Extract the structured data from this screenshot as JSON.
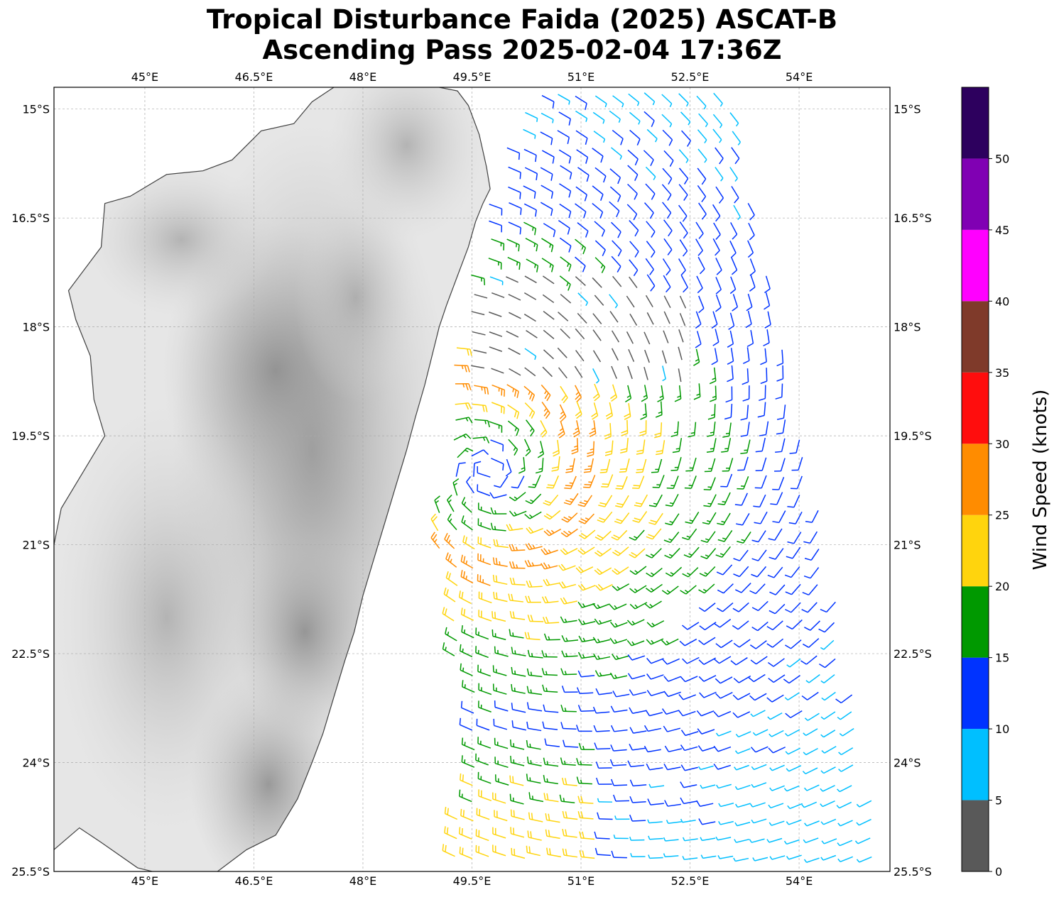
{
  "title_line1": "Tropical Disturbance Faida (2025) ASCAT-B",
  "title_line2": "Ascending Pass 2025-02-04 17:36Z",
  "map": {
    "projection": "PlateCarree",
    "lon_range": [
      43.75,
      55.25
    ],
    "lat_range": [
      -25.5,
      -14.7
    ],
    "lon_ticks": [
      {
        "value": 45.0,
        "label": "45°E"
      },
      {
        "value": 46.5,
        "label": "46.5°E"
      },
      {
        "value": 48.0,
        "label": "48°E"
      },
      {
        "value": 49.5,
        "label": "49.5°E"
      },
      {
        "value": 51.0,
        "label": "51°E"
      },
      {
        "value": 52.5,
        "label": "52.5°E"
      },
      {
        "value": 54.0,
        "label": "54°E"
      }
    ],
    "lat_ticks": [
      {
        "value": -15.0,
        "label": "15°S"
      },
      {
        "value": -16.5,
        "label": "16.5°S"
      },
      {
        "value": -18.0,
        "label": "18°S"
      },
      {
        "value": -19.5,
        "label": "19.5°S"
      },
      {
        "value": -21.0,
        "label": "21°S"
      },
      {
        "value": -22.5,
        "label": "22.5°S"
      },
      {
        "value": -24.0,
        "label": "24°S"
      },
      {
        "value": -25.5,
        "label": "25.5°S"
      }
    ],
    "gridlines": true,
    "land": "Madagascar (terrain shaded in grayscale)",
    "ocean_color": "#ffffff",
    "coast_color": "#404040",
    "coastline_east": [
      [
        49.05,
        -14.7
      ],
      [
        49.3,
        -14.75
      ],
      [
        49.45,
        -14.95
      ],
      [
        49.6,
        -15.35
      ],
      [
        49.7,
        -15.8
      ],
      [
        49.75,
        -16.1
      ],
      [
        49.65,
        -16.3
      ],
      [
        49.55,
        -16.55
      ],
      [
        49.45,
        -16.9
      ],
      [
        49.3,
        -17.3
      ],
      [
        49.15,
        -17.7
      ],
      [
        49.05,
        -18.0
      ],
      [
        48.95,
        -18.4
      ],
      [
        48.85,
        -18.8
      ],
      [
        48.72,
        -19.25
      ],
      [
        48.6,
        -19.7
      ],
      [
        48.45,
        -20.2
      ],
      [
        48.3,
        -20.7
      ],
      [
        48.15,
        -21.2
      ],
      [
        48.0,
        -21.7
      ],
      [
        47.88,
        -22.2
      ],
      [
        47.75,
        -22.6
      ],
      [
        47.6,
        -23.1
      ],
      [
        47.45,
        -23.6
      ],
      [
        47.3,
        -24.0
      ],
      [
        47.1,
        -24.5
      ],
      [
        46.8,
        -25.0
      ],
      [
        46.4,
        -25.2
      ],
      [
        46.0,
        -25.5
      ]
    ],
    "coastline_west": [
      [
        43.75,
        -21.0
      ],
      [
        43.85,
        -20.5
      ],
      [
        44.15,
        -20.0
      ],
      [
        44.45,
        -19.5
      ],
      [
        44.3,
        -19.0
      ],
      [
        44.25,
        -18.4
      ],
      [
        44.05,
        -17.9
      ],
      [
        43.95,
        -17.5
      ],
      [
        44.4,
        -16.9
      ],
      [
        44.45,
        -16.3
      ],
      [
        44.8,
        -16.2
      ],
      [
        45.3,
        -15.9
      ],
      [
        45.8,
        -15.85
      ],
      [
        46.2,
        -15.7
      ],
      [
        46.6,
        -15.3
      ],
      [
        47.05,
        -15.2
      ],
      [
        47.3,
        -14.9
      ],
      [
        47.6,
        -14.7
      ]
    ],
    "coastline_southwest": [
      [
        43.75,
        -25.2
      ],
      [
        44.1,
        -24.9
      ],
      [
        44.4,
        -25.1
      ],
      [
        44.9,
        -25.45
      ],
      [
        45.1,
        -25.5
      ]
    ]
  },
  "swath": {
    "edges_lon_lat": [
      [
        50.3,
        -14.7
      ],
      [
        53.0,
        -14.7
      ],
      [
        54.4,
        -21.0
      ],
      [
        55.2,
        -25.5
      ],
      [
        49.2,
        -25.5
      ],
      [
        49.4,
        -23.5
      ],
      [
        49.0,
        -20.8
      ],
      [
        49.3,
        -18.0
      ],
      [
        49.6,
        -16.5
      ],
      [
        50.1,
        -15.1
      ]
    ]
  },
  "wind_field": {
    "center_lon": 49.75,
    "center_lat": -20.0,
    "units": "knots",
    "barbs": "generated from vortex model around the low center"
  },
  "colorbar": {
    "label": "Wind Speed (knots)",
    "bounds": [
      0,
      5,
      10,
      15,
      20,
      25,
      30,
      35,
      40,
      45,
      50,
      55
    ],
    "colors": [
      "#595959",
      "#00bfff",
      "#0033ff",
      "#009900",
      "#ffd40d",
      "#ff8c00",
      "#ff0d0d",
      "#7f3a2a",
      "#ff00ff",
      "#8000b3",
      "#2d005e"
    ],
    "tick_labels": [
      "0",
      "5",
      "10",
      "15",
      "20",
      "25",
      "30",
      "35",
      "40",
      "45",
      "50"
    ]
  }
}
